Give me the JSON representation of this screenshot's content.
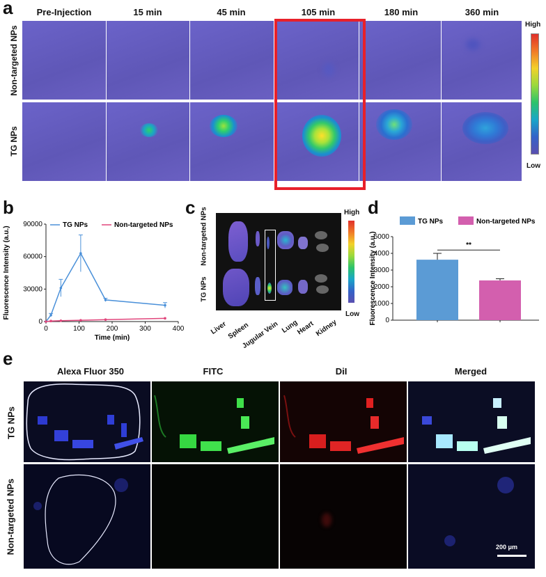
{
  "panel_a": {
    "letter": "a",
    "columns": [
      "Pre-Injection",
      "15 min",
      "45 min",
      "105 min",
      "180 min",
      "360 min"
    ],
    "rows": [
      "Non-targeted NPs",
      "TG NPs"
    ],
    "colorbar": {
      "high": "High",
      "low": "Low"
    },
    "highlight_color": "#e8202a"
  },
  "panel_b": {
    "letter": "b",
    "chart_data": {
      "type": "line",
      "xlabel": "Time (min)",
      "ylabel": "Fluorescence Intensity (a.u.)",
      "xlim": [
        0,
        400
      ],
      "ylim": [
        0,
        90000
      ],
      "xticks": [
        "0",
        "100",
        "200",
        "300",
        "400"
      ],
      "yticks": [
        "0",
        "30000",
        "60000",
        "90000"
      ],
      "series": [
        {
          "name": "TG NPs",
          "color": "#4a90d9",
          "x": [
            0,
            15,
            45,
            105,
            180,
            360
          ],
          "y": [
            0,
            6000,
            31000,
            63000,
            20000,
            15000
          ],
          "err": [
            0,
            1500,
            8000,
            17000,
            1500,
            2500
          ]
        },
        {
          "name": "Non-targeted NPs",
          "color": "#e0457b",
          "x": [
            0,
            15,
            45,
            105,
            180,
            360
          ],
          "y": [
            0,
            500,
            800,
            1200,
            1800,
            3000
          ],
          "err": [
            0,
            0,
            0,
            0,
            0,
            0
          ]
        }
      ],
      "legend": "top"
    }
  },
  "panel_c": {
    "letter": "c",
    "rows": [
      "Non-targeted NPs",
      "TG NPs"
    ],
    "organs": [
      "Liver",
      "Spleen",
      "Jugular Vein",
      "Lung",
      "Heart",
      "Kidney"
    ],
    "colorbar": {
      "high": "High",
      "low": "Low"
    }
  },
  "panel_d": {
    "letter": "d",
    "chart_data": {
      "type": "bar",
      "categories": [
        "TG NPs",
        "Non-targeted NPs"
      ],
      "values": [
        3620,
        2380
      ],
      "errors": [
        380,
        100
      ],
      "colors": [
        "#5b9bd5",
        "#d35fae"
      ],
      "ylabel": "Fluorescence Intensity (a.u.)",
      "ylim": [
        0,
        5000
      ],
      "yticks": [
        "0",
        "1000",
        "2000",
        "3000",
        "4000",
        "5000"
      ],
      "significance": "**",
      "legend": "top"
    }
  },
  "panel_e": {
    "letter": "e",
    "columns": [
      "Alexa Fluor 350",
      "FITC",
      "DiI",
      "Merged"
    ],
    "rows": [
      "TG NPs",
      "Non-targeted NPs"
    ],
    "scale_bar": "200 μm"
  }
}
